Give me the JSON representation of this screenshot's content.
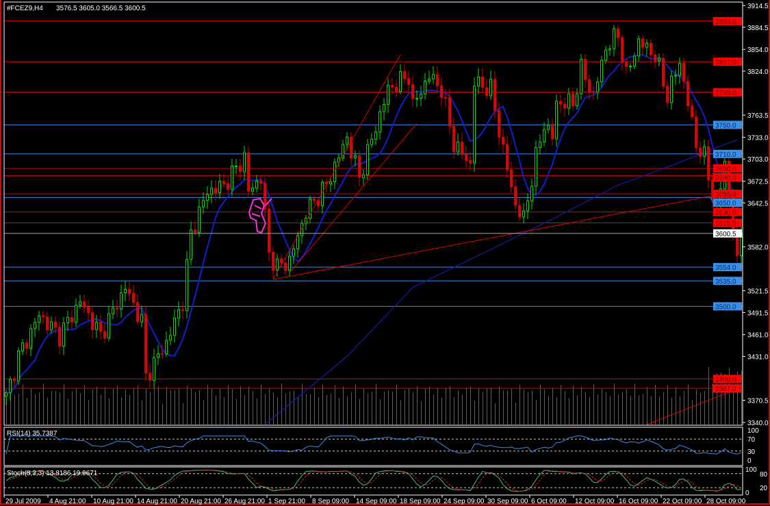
{
  "header": {
    "symbol_label": "#FCEZ9,H4",
    "ohlc": "3576.5 3605.0 3566.5 3600.5"
  },
  "current_price": "3600.5",
  "colors": {
    "bull": "#00e000",
    "bear": "#e00000",
    "fast_ma": "#1020d0",
    "slow_ma": "#1a1aa8",
    "hline_red": "#e00000",
    "hline_blue": "#3a8fe8",
    "volume": "#9a30c8",
    "rsi": "#3a8fe8",
    "stoch_main": "#40c080",
    "stoch_signal": "#e02020",
    "drawing": "#ff30e0"
  },
  "chart_data": [
    {
      "type": "candlestick",
      "title": "#FCEZ9,H4",
      "ylim": [
        3340,
        3914.5
      ],
      "y_ticks": [
        "3914.5",
        "3884.5",
        "3854.0",
        "3824.0",
        "3763.5",
        "3733.0",
        "3703.0",
        "3672.5",
        "3642.5",
        "3582.0",
        "3521.5",
        "3491.5",
        "3461.0",
        "3431.0",
        "3370.5",
        "3340.0"
      ],
      "x_ticks": [
        "29 Jul 2009",
        "4 Aug 21:00",
        "10 Aug 21:00",
        "14 Aug 21:00",
        "20 Aug 21:00",
        "26 Aug 21:00",
        "1 Sep 21:00",
        "8 Sep 09:00",
        "14 Sep 09:00",
        "18 Sep 09:00",
        "24 Sep 09:00",
        "30 Sep 09:00",
        "6 Oct 09:00",
        "12 Oct 09:00",
        "16 Oct 09:00",
        "22 Oct 09:00",
        "28 Oct 09:00"
      ],
      "close_path": [
        [
          0,
          3375
        ],
        [
          3,
          3431
        ],
        [
          8,
          3488
        ],
        [
          13,
          3460
        ],
        [
          18,
          3507
        ],
        [
          23,
          3460
        ],
        [
          29,
          3526
        ],
        [
          33,
          3479
        ],
        [
          34,
          3403
        ],
        [
          39,
          3450
        ],
        [
          43,
          3507
        ],
        [
          45,
          3601
        ],
        [
          49,
          3658
        ],
        [
          53,
          3667
        ],
        [
          58,
          3705
        ],
        [
          59,
          3658
        ],
        [
          62,
          3677
        ],
        [
          64,
          3573
        ],
        [
          66,
          3554
        ],
        [
          69,
          3563
        ],
        [
          73,
          3630
        ],
        [
          78,
          3667
        ],
        [
          83,
          3733
        ],
        [
          86,
          3677
        ],
        [
          93,
          3799
        ],
        [
          98,
          3818
        ],
        [
          99,
          3776
        ],
        [
          103,
          3818
        ],
        [
          106,
          3799
        ],
        [
          109,
          3724
        ],
        [
          113,
          3696
        ],
        [
          114,
          3809
        ],
        [
          118,
          3799
        ],
        [
          121,
          3715
        ],
        [
          124,
          3639
        ],
        [
          126,
          3620
        ],
        [
          129,
          3705
        ],
        [
          131,
          3752
        ],
        [
          133,
          3733
        ],
        [
          134,
          3780
        ],
        [
          138,
          3780
        ],
        [
          140,
          3827
        ],
        [
          143,
          3790
        ],
        [
          146,
          3856
        ],
        [
          149,
          3875
        ],
        [
          151,
          3818
        ],
        [
          154,
          3865
        ],
        [
          158,
          3846
        ],
        [
          161,
          3790
        ],
        [
          164,
          3837
        ],
        [
          166,
          3780
        ],
        [
          168,
          3724
        ],
        [
          170,
          3705
        ],
        [
          173,
          3630
        ],
        [
          175,
          3700
        ],
        [
          178,
          3559
        ],
        [
          179,
          3600.5
        ]
      ],
      "slow_ma": [
        [
          63,
          3337
        ],
        [
          83,
          3431
        ],
        [
          99,
          3526
        ],
        [
          116,
          3573
        ],
        [
          133,
          3620
        ],
        [
          149,
          3667
        ],
        [
          163,
          3696
        ],
        [
          173,
          3719
        ],
        [
          178,
          3729
        ]
      ],
      "horizontal_levels": [
        {
          "price": "3893.0",
          "color": "red"
        },
        {
          "price": "3837.0",
          "color": "red"
        },
        {
          "price": "3795.0",
          "color": "red"
        },
        {
          "price": "3750.0",
          "color": "blue"
        },
        {
          "price": "3710.0",
          "color": "blue"
        },
        {
          "price": "3690.0",
          "color": "red"
        },
        {
          "price": "3680.0",
          "color": "red"
        },
        {
          "price": "3655.0",
          "color": "red"
        },
        {
          "price": "3650.0",
          "color": "blue"
        },
        {
          "price": "3630.0",
          "color": "red"
        },
        {
          "price": "3615.0",
          "color": "red"
        },
        {
          "price": "3554.0",
          "color": "blue"
        },
        {
          "price": "3535.0",
          "color": "blue"
        },
        {
          "price": "3500.0",
          "color": "blue"
        },
        {
          "price": "3400.0",
          "color": "red"
        },
        {
          "price": "3387.0",
          "color": "red"
        }
      ],
      "trendlines": [
        [
          [
            65,
            3537
          ],
          [
            96,
            3847
          ]
        ],
        [
          [
            69,
            3546
          ],
          [
            100,
            3752
          ]
        ],
        [
          [
            65,
            3537
          ],
          [
            179,
            3660
          ]
        ],
        [
          [
            156,
            3337
          ],
          [
            180,
            3389
          ]
        ]
      ]
    },
    {
      "type": "line",
      "title": "RSI(14) 35.7387",
      "levels": [
        "100",
        "70",
        "30",
        "0"
      ]
    },
    {
      "type": "line",
      "title": "Stoch(8,3,3) 13.8186 19.9671",
      "levels": [
        "100",
        "80",
        "20",
        "0"
      ]
    }
  ]
}
